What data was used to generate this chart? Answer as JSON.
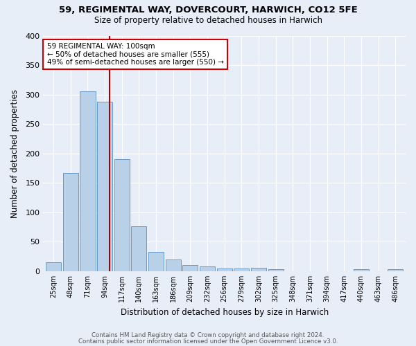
{
  "title": "59, REGIMENTAL WAY, DOVERCOURT, HARWICH, CO12 5FE",
  "subtitle": "Size of property relative to detached houses in Harwich",
  "xlabel": "Distribution of detached houses by size in Harwich",
  "ylabel": "Number of detached properties",
  "footer_line1": "Contains HM Land Registry data © Crown copyright and database right 2024.",
  "footer_line2": "Contains public sector information licensed under the Open Government Licence v3.0.",
  "categories": [
    "25sqm",
    "48sqm",
    "71sqm",
    "94sqm",
    "117sqm",
    "140sqm",
    "163sqm",
    "186sqm",
    "209sqm",
    "232sqm",
    "256sqm",
    "279sqm",
    "302sqm",
    "325sqm",
    "348sqm",
    "371sqm",
    "394sqm",
    "417sqm",
    "440sqm",
    "463sqm",
    "486sqm"
  ],
  "values": [
    15,
    167,
    305,
    288,
    190,
    76,
    33,
    20,
    10,
    8,
    5,
    5,
    6,
    4,
    0,
    0,
    0,
    0,
    3,
    0,
    3
  ],
  "bar_color": "#b8d0e8",
  "bar_edge_color": "#6699cc",
  "bg_color": "#e8eef8",
  "grid_color": "#ffffff",
  "annotation_text": "59 REGIMENTAL WAY: 100sqm\n← 50% of detached houses are smaller (555)\n49% of semi-detached houses are larger (550) →",
  "annotation_box_color": "#ffffff",
  "annotation_box_edge": "#cc0000",
  "ylim": [
    0,
    400
  ],
  "yticks": [
    0,
    50,
    100,
    150,
    200,
    250,
    300,
    350,
    400
  ]
}
